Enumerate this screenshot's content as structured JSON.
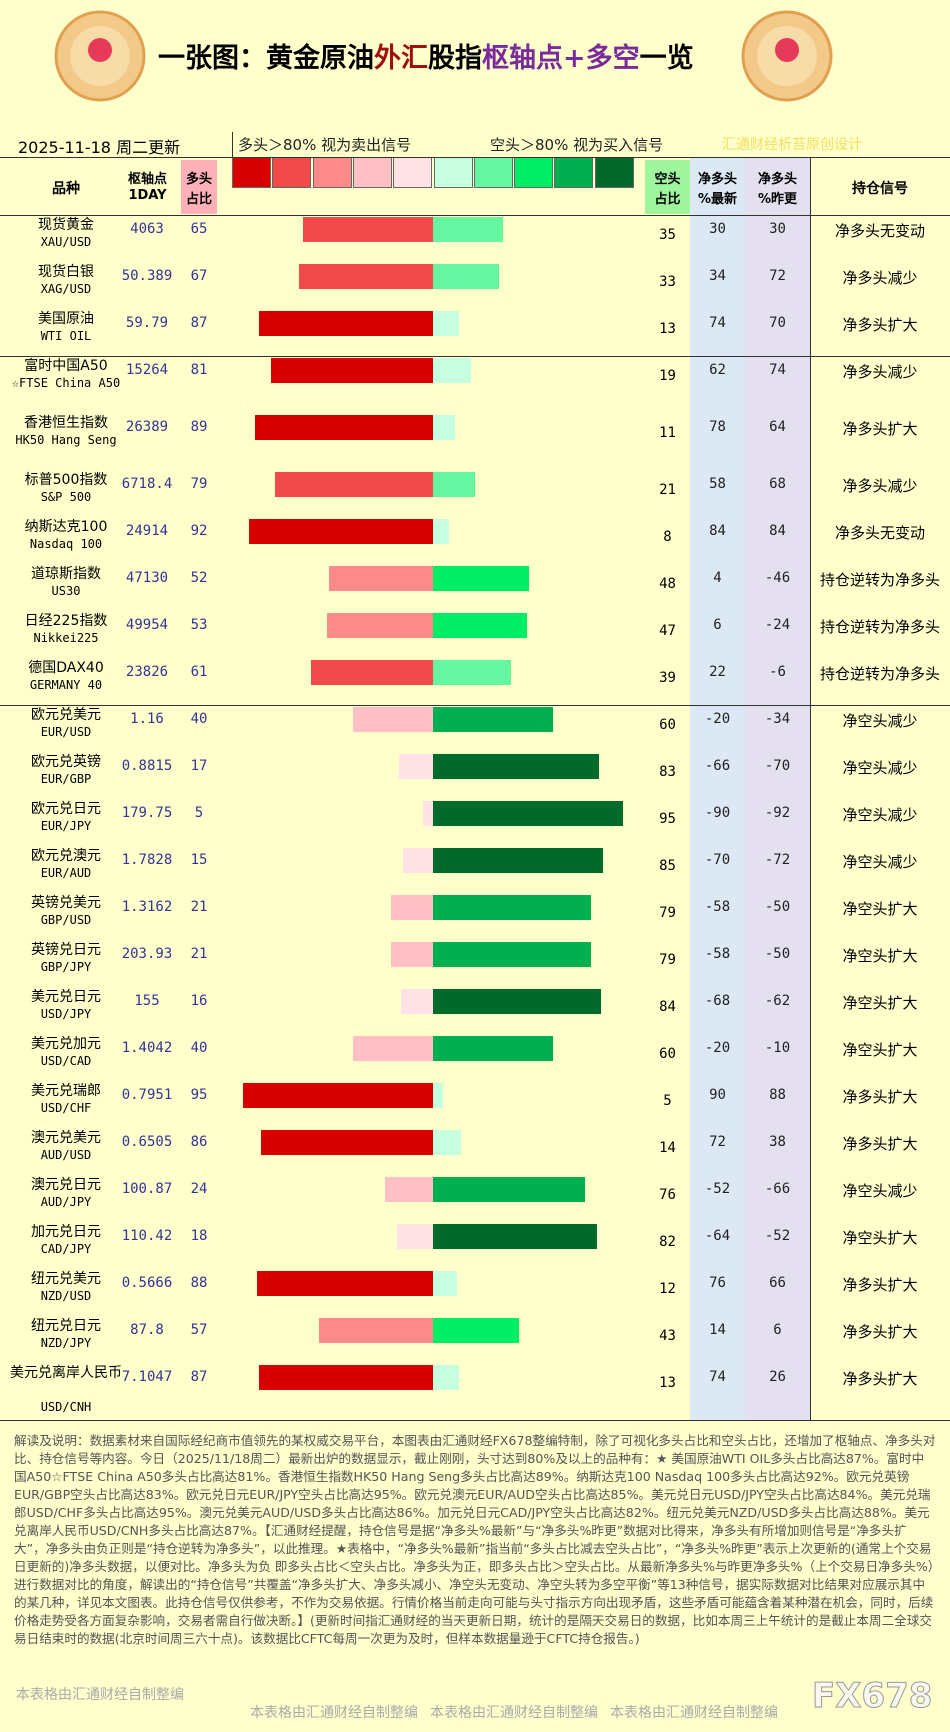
{
  "header": {
    "title_parts": [
      {
        "text": "一张图：黄金原油",
        "color": "#000000"
      },
      {
        "text": "外汇",
        "color": "#a01010"
      },
      {
        "text": "股指",
        "color": "#000000"
      },
      {
        "text": "枢轴点+多空",
        "color": "#7a2a9a"
      },
      {
        "text": "一览",
        "color": "#000000"
      }
    ],
    "date": "2025-11-18 周二更新",
    "legend_long": "多头＞80% 视为卖出信号",
    "legend_short": "空头＞80% 视为买入信号",
    "credit": "汇通财经析苔原创设计",
    "legend_colors": [
      "#d90000",
      "#f24a4a",
      "#ff8a8a",
      "#ffbfc4",
      "#ffe2e6",
      "#c6ffe0",
      "#66f5a0",
      "#00ee66",
      "#00b050",
      "#006a2a"
    ]
  },
  "table": {
    "columns": [
      [
        "品种"
      ],
      [
        "枢轴点",
        "1DAY"
      ],
      [
        "多头",
        "占比"
      ],
      [
        "空头",
        "占比"
      ],
      [
        "净多头",
        "%最新"
      ],
      [
        "净多头",
        "%昨更"
      ],
      [
        "持仓信号"
      ]
    ],
    "rows": [
      {
        "name": "现货黄金",
        "code": "XAU/USD",
        "pivot": "4063",
        "long": 65,
        "short": 35,
        "net_latest": 30,
        "net_prev": 30,
        "signal": "净多头无变动"
      },
      {
        "name": "现货白银",
        "code": "XAG/USD",
        "pivot": "50.389",
        "long": 67,
        "short": 33,
        "net_latest": 34,
        "net_prev": 72,
        "signal": "净多头减少"
      },
      {
        "name": "美国原油",
        "code": "WTI OIL",
        "pivot": "59.79",
        "long": 87,
        "short": 13,
        "net_latest": 74,
        "net_prev": 70,
        "signal": "净多头扩大"
      },
      {
        "name": "富时中国A50",
        "code": "☆FTSE China A50",
        "pivot": "15264",
        "long": 81,
        "short": 19,
        "net_latest": 62,
        "net_prev": 74,
        "signal": "净多头减少"
      },
      {
        "name": "香港恒生指数",
        "code": "HK50 Hang Seng",
        "pivot": "26389",
        "long": 89,
        "short": 11,
        "net_latest": 78,
        "net_prev": 64,
        "signal": "净多头扩大"
      },
      {
        "name": "标普500指数",
        "code": "S&P 500",
        "pivot": "6718.4",
        "long": 79,
        "short": 21,
        "net_latest": 58,
        "net_prev": 68,
        "signal": "净多头减少"
      },
      {
        "name": "纳斯达克100",
        "code": "Nasdaq 100",
        "pivot": "24914",
        "long": 92,
        "short": 8,
        "net_latest": 84,
        "net_prev": 84,
        "signal": "净多头无变动"
      },
      {
        "name": "道琼斯指数",
        "code": "US30",
        "pivot": "47130",
        "long": 52,
        "short": 48,
        "net_latest": 4,
        "net_prev": -46,
        "signal": "持仓逆转为净多头"
      },
      {
        "name": "日经225指数",
        "code": "Nikkei225",
        "pivot": "49954",
        "long": 53,
        "short": 47,
        "net_latest": 6,
        "net_prev": -24,
        "signal": "持仓逆转为净多头"
      },
      {
        "name": "德国DAX40",
        "code": "GERMANY 40",
        "pivot": "23826",
        "long": 61,
        "short": 39,
        "net_latest": 22,
        "net_prev": -6,
        "signal": "持仓逆转为净多头"
      },
      {
        "name": "欧元兑美元",
        "code": "EUR/USD",
        "pivot": "1.16",
        "long": 40,
        "short": 60,
        "net_latest": -20,
        "net_prev": -34,
        "signal": "净空头减少"
      },
      {
        "name": "欧元兑英镑",
        "code": "EUR/GBP",
        "pivot": "0.8815",
        "long": 17,
        "short": 83,
        "net_latest": -66,
        "net_prev": -70,
        "signal": "净空头减少"
      },
      {
        "name": "欧元兑日元",
        "code": "EUR/JPY",
        "pivot": "179.75",
        "long": 5,
        "short": 95,
        "net_latest": -90,
        "net_prev": -92,
        "signal": "净空头减少"
      },
      {
        "name": "欧元兑澳元",
        "code": "EUR/AUD",
        "pivot": "1.7828",
        "long": 15,
        "short": 85,
        "net_latest": -70,
        "net_prev": -72,
        "signal": "净空头减少"
      },
      {
        "name": "英镑兑美元",
        "code": "GBP/USD",
        "pivot": "1.3162",
        "long": 21,
        "short": 79,
        "net_latest": -58,
        "net_prev": -50,
        "signal": "净空头扩大"
      },
      {
        "name": "英镑兑日元",
        "code": "GBP/JPY",
        "pivot": "203.93",
        "long": 21,
        "short": 79,
        "net_latest": -58,
        "net_prev": -50,
        "signal": "净空头扩大"
      },
      {
        "name": "美元兑日元",
        "code": "USD/JPY",
        "pivot": "155",
        "long": 16,
        "short": 84,
        "net_latest": -68,
        "net_prev": -62,
        "signal": "净空头扩大"
      },
      {
        "name": "美元兑加元",
        "code": "USD/CAD",
        "pivot": "1.4042",
        "long": 40,
        "short": 60,
        "net_latest": -20,
        "net_prev": -10,
        "signal": "净空头扩大"
      },
      {
        "name": "美元兑瑞郎",
        "code": "USD/CHF",
        "pivot": "0.7951",
        "long": 95,
        "short": 5,
        "net_latest": 90,
        "net_prev": 88,
        "signal": "净多头扩大"
      },
      {
        "name": "澳元兑美元",
        "code": "AUD/USD",
        "pivot": "0.6505",
        "long": 86,
        "short": 14,
        "net_latest": 72,
        "net_prev": 38,
        "signal": "净多头扩大"
      },
      {
        "name": "澳元兑日元",
        "code": "AUD/JPY",
        "pivot": "100.87",
        "long": 24,
        "short": 76,
        "net_latest": -52,
        "net_prev": -66,
        "signal": "净空头减少"
      },
      {
        "name": "加元兑日元",
        "code": "CAD/JPY",
        "pivot": "110.42",
        "long": 18,
        "short": 82,
        "net_latest": -64,
        "net_prev": -52,
        "signal": "净空头扩大"
      },
      {
        "name": "纽元兑美元",
        "code": "NZD/USD",
        "pivot": "0.5666",
        "long": 88,
        "short": 12,
        "net_latest": 76,
        "net_prev": 66,
        "signal": "净多头扩大"
      },
      {
        "name": "纽元兑日元",
        "code": "NZD/JPY",
        "pivot": "87.8",
        "long": 57,
        "short": 43,
        "net_latest": 14,
        "net_prev": 6,
        "signal": "净多头扩大"
      },
      {
        "name": "美元兑离岸人民币",
        "code": "USD/CNH",
        "pivot": "7.1047",
        "long": 87,
        "short": 13,
        "net_latest": 74,
        "net_prev": 26,
        "signal": "净多头扩大"
      }
    ]
  },
  "notes": "解读及说明：数据素材来自国际经纪商市值领先的某权威交易平台，本图表由汇通财经FX678整编特制，除了可视化多头占比和空头占比，还增加了枢轴点、净多头对比、持仓信号等内容。今日（2025/11/18周二）最新出炉的数据显示，截止刚刚，头寸达到80%及以上的品种有：★ 美国原油WTI OIL多头占比高达87%。富时中国A50☆FTSE China A50多头占比高达81%。香港恒生指数HK50 Hang Seng多头占比高达89%。纳斯达克100 Nasdaq 100多头占比高达92%。欧元兑英镑EUR/GBP空头占比高达83%。欧元兑日元EUR/JPY空头占比高达95%。欧元兑澳元EUR/AUD空头占比高达85%。美元兑日元USD/JPY空头占比高达84%。美元兑瑞郎USD/CHF多头占比高达95%。澳元兑美元AUD/USD多头占比高达86%。加元兑日元CAD/JPY空头占比高达82%。纽元兑美元NZD/USD多头占比高达88%。美元兑离岸人民币USD/CNH多头占比高达87%。【汇通财经提醒，持仓信号是据“净多头%最新”与“净多头%昨更”数据对比得来，净多头有所增加则信号是“净多头扩大”，净多头由负正则是“持仓逆转为净多头”，以此推理。★表格中，“净多头%最新”指当前“多头占比减去空头占比”，“净多头%昨更”表示上次更新的(通常上个交易日更新的)净多头数据，以便对比。净多头为负 即多头占比＜空头占比。净多头为正，即多头占比＞空头占比。从最新净多头%与昨更净多头%（上个交易日净多头%）进行数据对比的角度，解读出的“持仓信号”共覆盖“净多头扩大、净多头减小、净空头无变动、净空头转为多空平衡”等13种信号，据实际数据对比结果对应展示其中的某几种，详见本文图表。此持仓信号仅供参考，不作为交易依据。行情价格当前走向可能与头寸指示方向出现矛盾，这些矛盾可能蕴含着某种潜在机会，同时，后续价格走势受各方面复杂影响，交易者需自行做决断。】(更新时间指汇通财经的当天更新日期，统计的是隔天交易日的数据，比如本周三上午统计的是截止本周二全球交易日结束时的数据(北京时间周三六十点)。该数据比CFTC每周一次更为及时，但样本数据量逊于CFTC持仓报告。)",
  "footer": {
    "watermarks": [
      "本表格由汇通财经自制整编",
      "本表格由汇通财经自制整编",
      "本表格由汇通财经自制整编",
      "本表格由汇通财经自制整编"
    ],
    "logo": "FX678"
  }
}
